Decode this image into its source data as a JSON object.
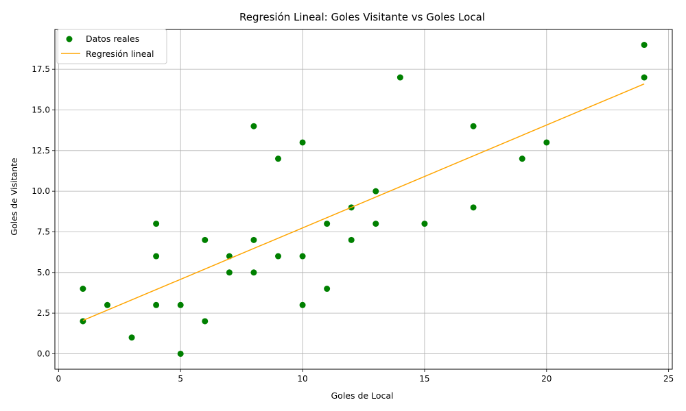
{
  "chart_data": {
    "type": "scatter",
    "title": "Regresión Lineal: Goles Visitante vs Goles Local",
    "xlabel": "Goles de Local",
    "ylabel": "Goles de Visitante",
    "xlim": [
      -0.15,
      25.15
    ],
    "ylim": [
      -0.95,
      19.95
    ],
    "xticks": [
      0,
      5,
      10,
      15,
      20,
      25
    ],
    "xtick_labels": [
      "0",
      "5",
      "10",
      "15",
      "20",
      "25"
    ],
    "yticks": [
      0,
      2.5,
      5,
      7.5,
      10,
      12.5,
      15,
      17.5
    ],
    "ytick_labels": [
      "0.0",
      "2.5",
      "5.0",
      "7.5",
      "10.0",
      "12.5",
      "15.0",
      "17.5"
    ],
    "grid": true,
    "legend_position": "upper left",
    "series": [
      {
        "name": "Datos reales",
        "kind": "scatter",
        "color": "#008000",
        "points": [
          [
            1,
            4
          ],
          [
            1,
            2
          ],
          [
            2,
            3
          ],
          [
            3,
            1
          ],
          [
            4,
            8
          ],
          [
            4,
            6
          ],
          [
            4,
            3
          ],
          [
            5,
            3
          ],
          [
            5,
            0
          ],
          [
            6,
            7
          ],
          [
            6,
            2
          ],
          [
            7,
            6
          ],
          [
            7,
            5
          ],
          [
            8,
            14
          ],
          [
            8,
            7
          ],
          [
            8,
            5
          ],
          [
            9,
            12
          ],
          [
            9,
            6
          ],
          [
            10,
            13
          ],
          [
            10,
            6
          ],
          [
            10,
            3
          ],
          [
            11,
            8
          ],
          [
            11,
            4
          ],
          [
            12,
            9
          ],
          [
            12,
            7
          ],
          [
            13,
            10
          ],
          [
            13,
            8
          ],
          [
            14,
            17
          ],
          [
            15,
            8
          ],
          [
            17,
            14
          ],
          [
            17,
            9
          ],
          [
            19,
            12
          ],
          [
            20,
            13
          ],
          [
            24,
            19
          ],
          [
            24,
            17
          ]
        ]
      },
      {
        "name": "Regresión lineal",
        "kind": "line",
        "color": "#FFA500",
        "x": [
          1,
          24
        ],
        "y": [
          2.05,
          16.6
        ]
      }
    ]
  }
}
